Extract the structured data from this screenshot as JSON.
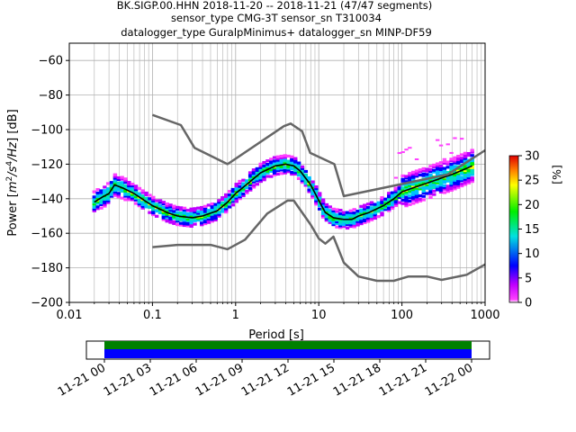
{
  "title_lines": [
    "BK.SIGP.00.HHN   2018-11-20 -- 2018-11-21  (47/47 segments)",
    "sensor_type CMG-3T sensor_sn T310034",
    "datalogger_type GuralpMinimus+ datalogger_sn MINP-DF59"
  ],
  "chart_data": [
    {
      "type": "heatmap",
      "xlabel": "Period [s]",
      "ylabel": "Power [m2/s4/Hz] [dB]",
      "ylabel_parts": {
        "prefix": "Power [",
        "m": "m",
        "exp2": "2",
        "s": "/s",
        "exp4": "4",
        "hz": "/Hz",
        "suffix": "] [dB]"
      },
      "x_scale": "log",
      "xlim": [
        0.01,
        1000
      ],
      "ylim": [
        -200,
        -50
      ],
      "x_ticks": [
        0.01,
        0.1,
        1,
        10,
        100,
        1000
      ],
      "x_tick_labels": [
        "0.01",
        "0.1",
        "1",
        "10",
        "100",
        "1000"
      ],
      "y_ticks": [
        -200,
        -180,
        -160,
        -140,
        -120,
        -100,
        -80,
        -60
      ],
      "y_tick_labels": [
        "−200",
        "−180",
        "−160",
        "−140",
        "−120",
        "−100",
        "−80",
        "−60"
      ],
      "grid": true,
      "series": [
        {
          "role": "mean",
          "color": "#000000",
          "x": [
            0.02,
            0.025,
            0.03,
            0.035,
            0.045,
            0.06,
            0.08,
            0.1,
            0.15,
            0.2,
            0.3,
            0.4,
            0.6,
            0.8,
            1.0,
            1.5,
            2.0,
            3.0,
            4.0,
            5.0,
            6.0,
            8.0,
            10,
            12,
            15,
            20,
            25,
            30,
            40,
            60,
            80,
            100,
            150,
            200,
            300,
            400,
            500,
            700
          ],
          "y": [
            -142,
            -139,
            -137,
            -132,
            -134,
            -137,
            -141,
            -144,
            -148,
            -150,
            -151,
            -150,
            -147,
            -142,
            -137,
            -130,
            -125,
            -121,
            -120,
            -121,
            -124,
            -132,
            -141,
            -148,
            -151,
            -152,
            -152,
            -150,
            -148,
            -144,
            -140,
            -136,
            -133,
            -131,
            -128,
            -126,
            -124,
            -121
          ]
        },
        {
          "role": "noise-model-high",
          "color": "#666666",
          "x": [
            0.1,
            0.22,
            0.32,
            0.8,
            3.8,
            4.6,
            6.3,
            7.9,
            15.4,
            20,
            354.8,
            1000
          ],
          "y": [
            -91.5,
            -97.4,
            -110.5,
            -120,
            -98.0,
            -96.5,
            -101.0,
            -113.5,
            -120.0,
            -138.5,
            -126.0,
            -112.0
          ]
        },
        {
          "role": "noise-model-low",
          "color": "#666666",
          "x": [
            0.1,
            0.2,
            0.5,
            0.8,
            1.3,
            2.4,
            4.2,
            5.0,
            8.0,
            10,
            12,
            15,
            20,
            30,
            50,
            80,
            120,
            200,
            300,
            600,
            1000
          ],
          "y": [
            -168,
            -166.7,
            -166.7,
            -169.2,
            -163.7,
            -148.6,
            -141.1,
            -141.1,
            -155,
            -163,
            -166,
            -162,
            -177,
            -185,
            -187.5,
            -187.5,
            -185,
            -185,
            -187,
            -184,
            -178
          ]
        }
      ]
    },
    {
      "type": "heatmap",
      "role": "colorbar",
      "label": "[%]",
      "range": [
        0,
        30
      ],
      "ticks": [
        0,
        5,
        10,
        15,
        20,
        25,
        30
      ],
      "tick_labels": [
        "0",
        "5",
        "10",
        "15",
        "20",
        "25",
        "30"
      ]
    },
    {
      "type": "bar",
      "role": "data-coverage",
      "tick_labels": [
        "11-21 00",
        "11-21 03",
        "11-21 06",
        "11-21 09",
        "11-21 12",
        "11-21 15",
        "11-21 18",
        "11-21 21",
        "11-22 00"
      ],
      "series": [
        {
          "role": "available",
          "color": "#008000"
        },
        {
          "role": "used",
          "color": "#0000ff"
        }
      ]
    }
  ]
}
